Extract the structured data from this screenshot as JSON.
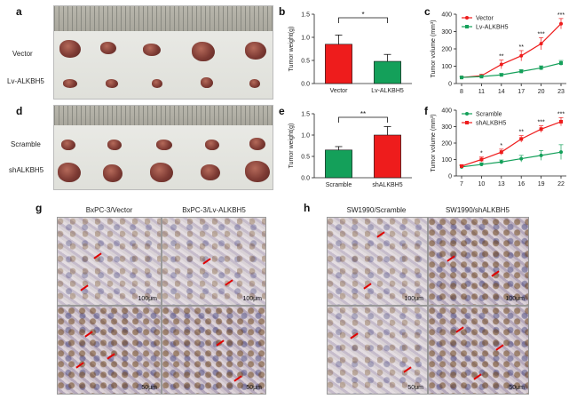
{
  "panels": {
    "a": {
      "label": "a",
      "rows": [
        "Vector",
        "Lv-ALKBH5"
      ]
    },
    "d": {
      "label": "d",
      "rows": [
        "Scramble",
        "shALKBH5"
      ]
    },
    "b": {
      "label": "b"
    },
    "e": {
      "label": "e"
    },
    "c": {
      "label": "c"
    },
    "f": {
      "label": "f"
    },
    "g": {
      "label": "g",
      "titles": [
        "BxPC-3/Vector",
        "BxPC-3/Lv-ALKBH5"
      ],
      "scales": [
        "100μm",
        "100μm",
        "50μm",
        "50μm"
      ]
    },
    "h": {
      "label": "h",
      "titles": [
        "SW1990/Scramble",
        "SW1990/shALKBH5"
      ],
      "scales": [
        "100μm",
        "100μm",
        "50μm",
        "50μm"
      ]
    }
  },
  "chart_data": [
    {
      "id": "b",
      "type": "bar",
      "categories": [
        "Vector",
        "Lv-ALKBH5"
      ],
      "values": [
        0.85,
        0.48
      ],
      "errors": [
        0.2,
        0.15
      ],
      "colors": [
        "#ee1c1c",
        "#14a05a"
      ],
      "ylabel": "Tumor weight(g)",
      "ylim": [
        0,
        1.5
      ],
      "yticks": [
        "0.0",
        "0.5",
        "1.0",
        "1.5"
      ],
      "significance": "*"
    },
    {
      "id": "e",
      "type": "bar",
      "categories": [
        "Scramble",
        "shALKBH5"
      ],
      "values": [
        0.65,
        1.0
      ],
      "errors": [
        0.08,
        0.2
      ],
      "colors": [
        "#14a05a",
        "#ee1c1c"
      ],
      "ylabel": "Tumor weight(g)",
      "ylim": [
        0,
        1.5
      ],
      "yticks": [
        "0.0",
        "0.5",
        "1.0",
        "1.5"
      ],
      "significance": "**"
    },
    {
      "id": "c",
      "type": "line",
      "x": [
        8,
        11,
        14,
        17,
        20,
        23
      ],
      "xticks": [
        "8",
        "11",
        "14",
        "17",
        "20",
        "23"
      ],
      "ylabel": "Tumor volume (mm³)",
      "ylim": [
        0,
        400
      ],
      "yticks": [
        "0",
        "100",
        "200",
        "300",
        "400"
      ],
      "legend": "top-left",
      "series": [
        {
          "name": "Vector",
          "color": "#ee1c1c",
          "values": [
            35,
            45,
            110,
            160,
            230,
            345
          ],
          "errors": [
            5,
            8,
            25,
            30,
            35,
            30
          ]
        },
        {
          "name": "Lv-ALKBH5",
          "color": "#14a05a",
          "values": [
            35,
            40,
            50,
            70,
            90,
            118
          ],
          "errors": [
            5,
            6,
            8,
            10,
            12,
            15
          ]
        }
      ],
      "annotations": [
        {
          "x": 14,
          "text": "**"
        },
        {
          "x": 17,
          "text": "**"
        },
        {
          "x": 20,
          "text": "***"
        },
        {
          "x": 23,
          "text": "***"
        }
      ]
    },
    {
      "id": "f",
      "type": "line",
      "x": [
        7,
        10,
        13,
        16,
        19,
        22
      ],
      "xticks": [
        "7",
        "10",
        "13",
        "16",
        "19",
        "22"
      ],
      "ylabel": "Tumor volume (mm³)",
      "ylim": [
        0,
        400
      ],
      "yticks": [
        "0",
        "100",
        "200",
        "300",
        "400"
      ],
      "legend": "top-left",
      "series": [
        {
          "name": "Scramble",
          "color": "#14a05a",
          "values": [
            55,
            70,
            85,
            105,
            125,
            145
          ],
          "errors": [
            8,
            10,
            12,
            20,
            30,
            45
          ]
        },
        {
          "name": "shALKBH5",
          "color": "#ee1c1c",
          "values": [
            60,
            100,
            145,
            225,
            285,
            330
          ],
          "errors": [
            8,
            15,
            18,
            20,
            20,
            25
          ]
        }
      ],
      "annotations": [
        {
          "x": 10,
          "text": "*"
        },
        {
          "x": 13,
          "text": "*"
        },
        {
          "x": 16,
          "text": "**"
        },
        {
          "x": 19,
          "text": "***"
        },
        {
          "x": 22,
          "text": "***"
        }
      ]
    }
  ]
}
